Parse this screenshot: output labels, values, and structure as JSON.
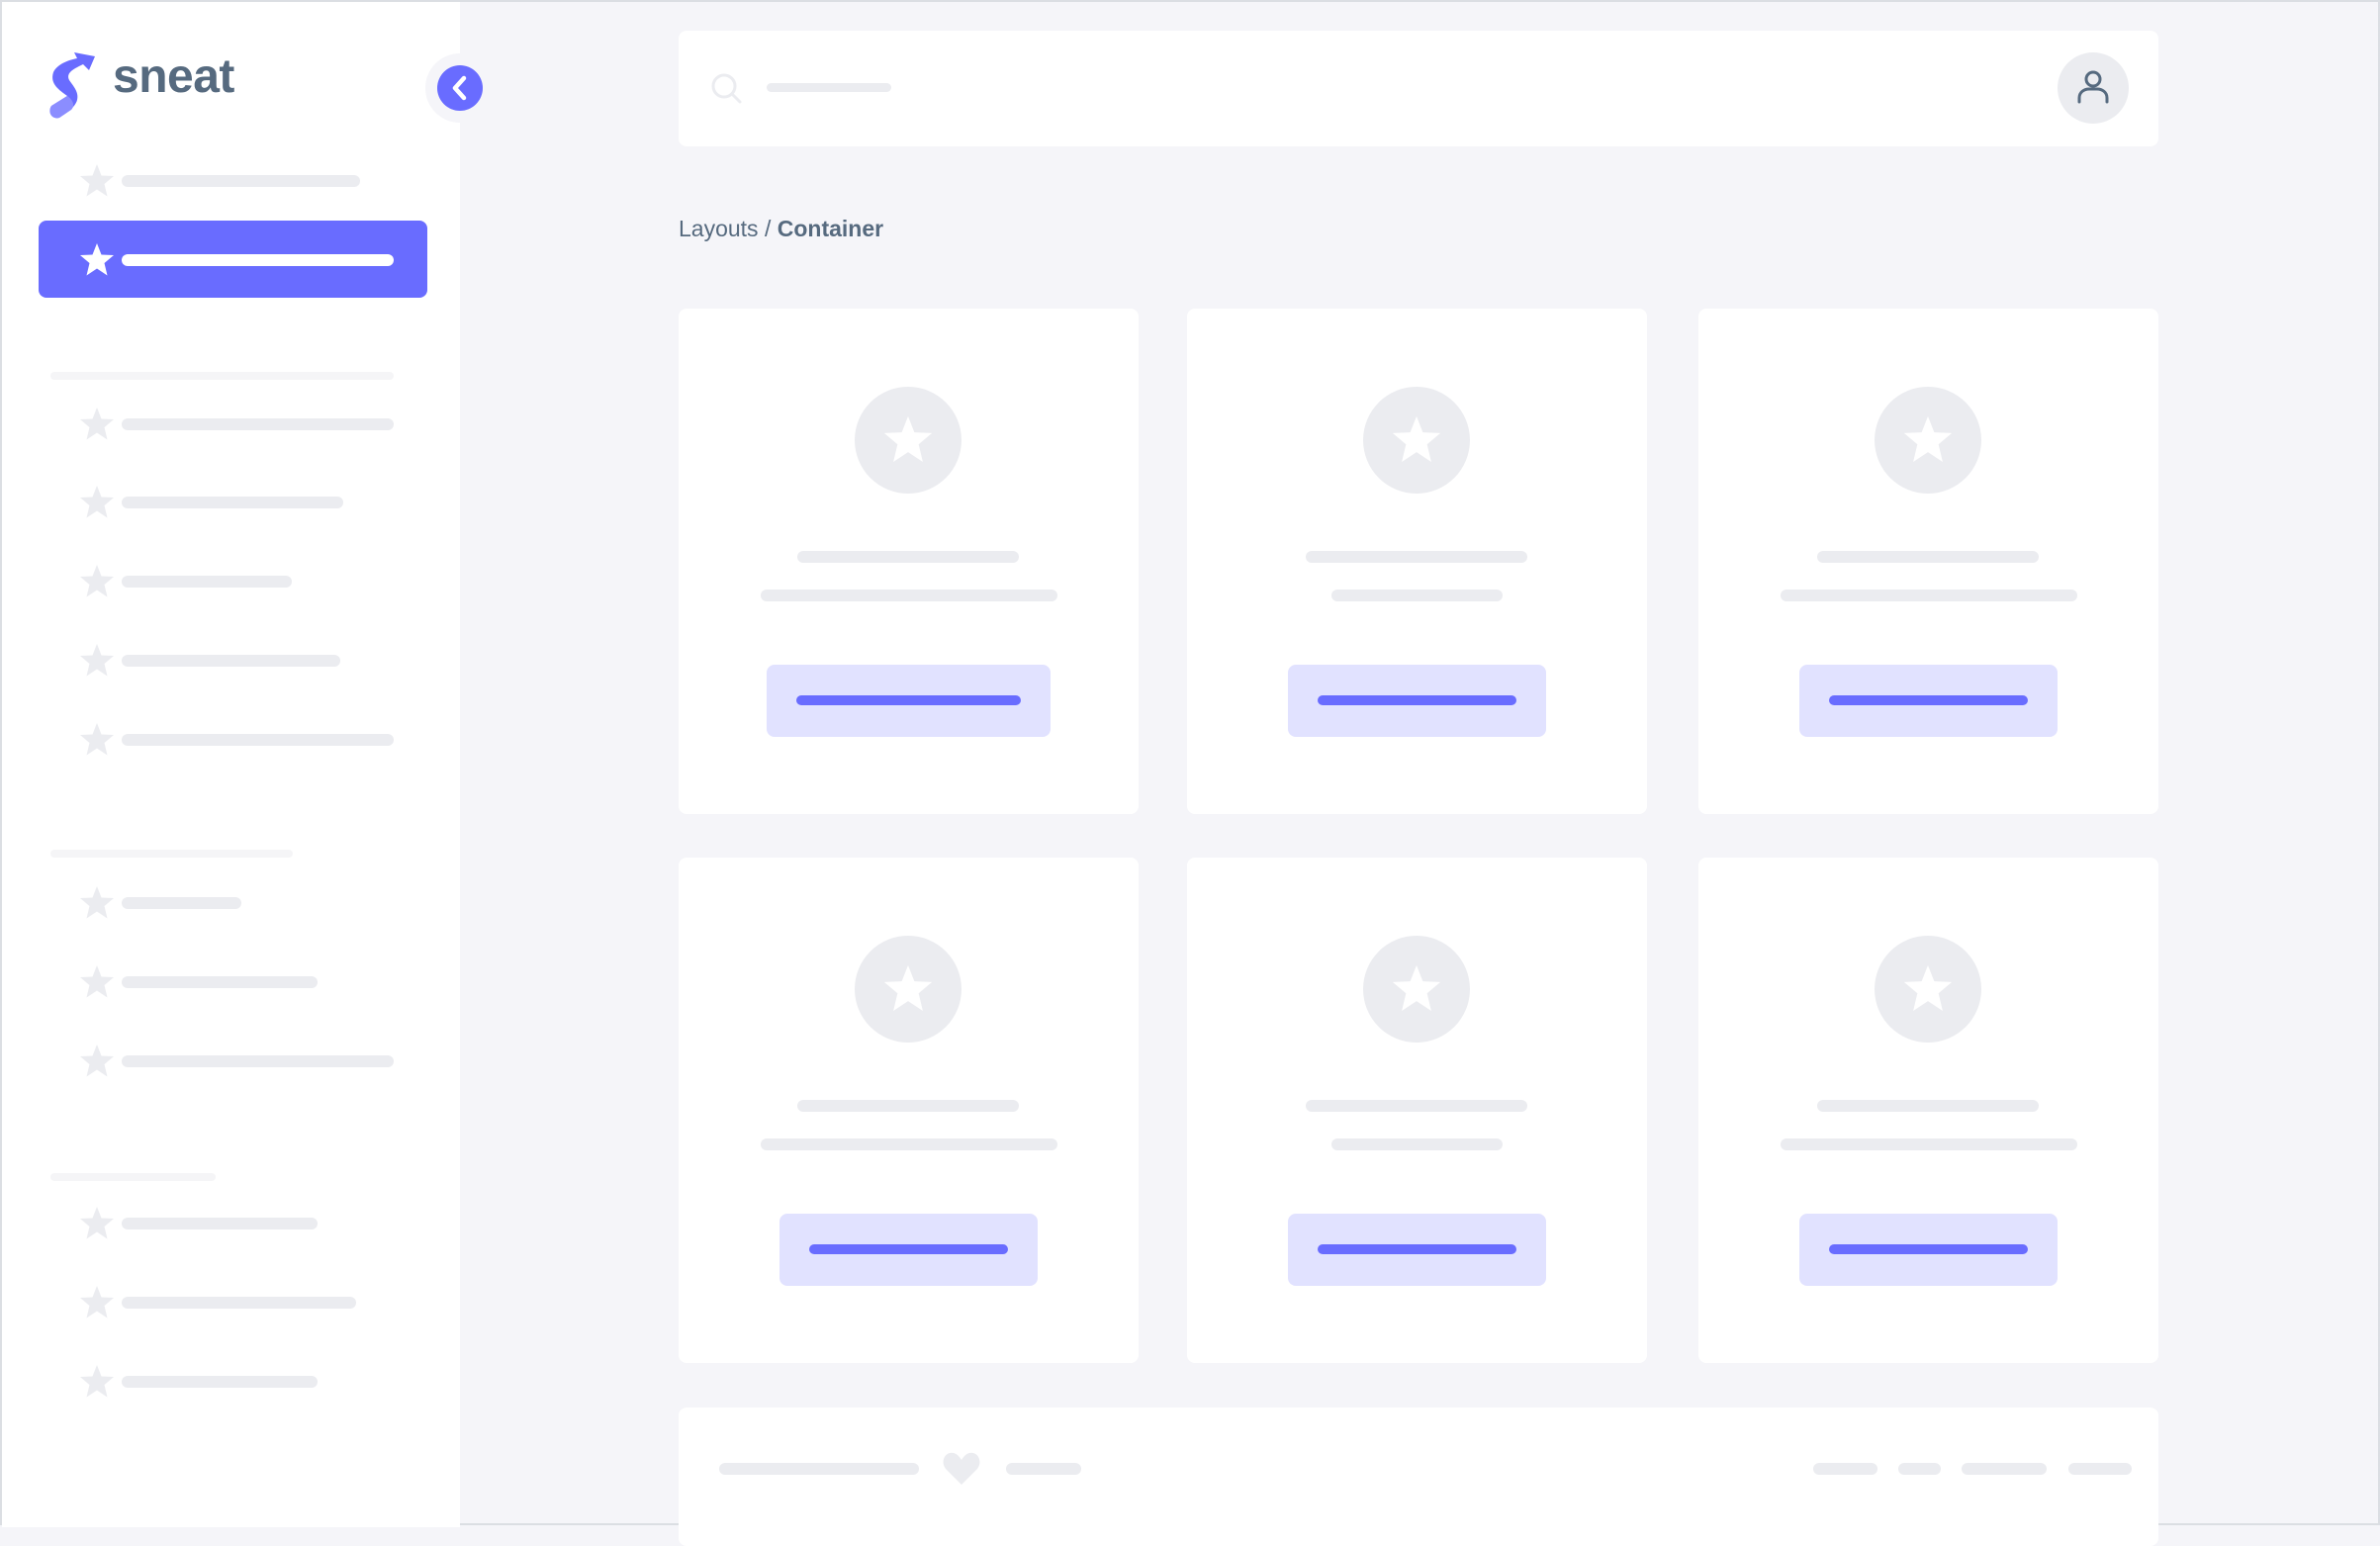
{
  "brand": {
    "name": "sneat",
    "accent": "#696cff",
    "text_color": "#566a7f"
  },
  "sidebar": {
    "collapse_icon": "chevron-left-icon",
    "item_icon": "star-icon",
    "active_index": 1
  },
  "header": {
    "search_icon": "search-icon",
    "avatar_icon": "user-icon"
  },
  "breadcrumb": {
    "parent": "Layouts",
    "separator": " / ",
    "current": "Container"
  },
  "cards": {
    "icon": "star-icon"
  },
  "footer": {
    "icon": "heart-icon"
  }
}
